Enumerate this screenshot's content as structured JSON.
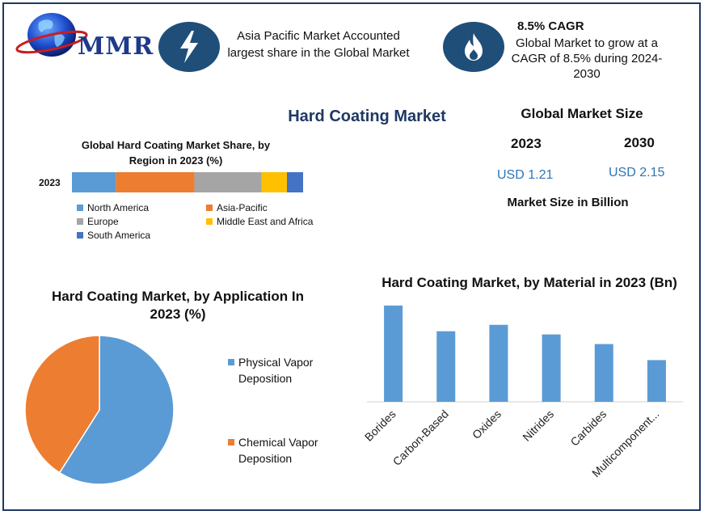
{
  "brand": {
    "name": "MMR"
  },
  "highlights": {
    "asia": {
      "icon": "lightning-icon",
      "text": "Asia Pacific Market Accounted largest share in the Global Market"
    },
    "cagr": {
      "icon": "flame-icon",
      "title": "8.5% CAGR",
      "text": "Global Market to grow at a CAGR of 8.5% during 2024-2030"
    }
  },
  "main_title": "Hard Coating Market",
  "global_market_size": {
    "title": "Global Market Size",
    "year1": "2023",
    "value1": "USD 1.21",
    "year2": "2030",
    "value2": "USD 2.15",
    "unit_label": "Market Size in Billion"
  },
  "colors": {
    "navy": "#1f4e79",
    "blue": "#5b9bd5",
    "orange": "#ed7d31",
    "gray": "#a5a5a5",
    "yellow": "#ffc000",
    "darkblue": "#4472c4"
  },
  "chart_data": [
    {
      "type": "bar",
      "orientation": "horizontal-stacked",
      "title": "Global Hard Coating Market Share, by Region in 2023 (%)",
      "categories": [
        "2023"
      ],
      "series": [
        {
          "name": "North America",
          "values": [
            19
          ],
          "color": "#5b9bd5"
        },
        {
          "name": "Asia-Pacific",
          "values": [
            34
          ],
          "color": "#ed7d31"
        },
        {
          "name": "Europe",
          "values": [
            29
          ],
          "color": "#a5a5a5"
        },
        {
          "name": "Middle East and Africa",
          "values": [
            11
          ],
          "color": "#ffc000"
        },
        {
          "name": "South America",
          "values": [
            7
          ],
          "color": "#4472c4"
        }
      ],
      "legend": "bottom"
    },
    {
      "type": "pie",
      "title": "Hard Coating Market, by Application In 2023 (%)",
      "labels": [
        "Physical Vapor Deposition",
        "Chemical Vapor Deposition"
      ],
      "values": [
        59,
        41
      ],
      "colors": [
        "#5b9bd5",
        "#ed7d31"
      ],
      "legend": "right"
    },
    {
      "type": "bar",
      "title": "Hard Coating Market, by Material in 2023 (Bn)",
      "categories": [
        "Borides",
        "Carbon-Based",
        "Oxides",
        "Nitrides",
        "Carbides",
        "Multicomponent..."
      ],
      "values": [
        0.3,
        0.22,
        0.24,
        0.21,
        0.18,
        0.13
      ],
      "ylim": [
        0,
        0.32
      ],
      "color": "#5b9bd5",
      "grid": false
    }
  ]
}
